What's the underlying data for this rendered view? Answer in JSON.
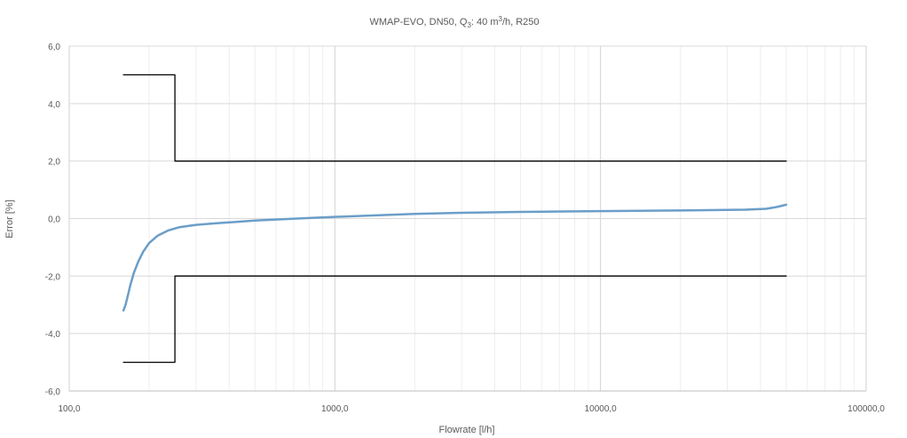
{
  "chart_data": {
    "type": "line",
    "title": "WMAP-EVO, DN50, Q3: 40 m³/h, R250",
    "title_parts": {
      "prefix": "WMAP-EVO, DN50, Q",
      "sub": "3",
      "mid": ": 40 m",
      "sup": "3",
      "suffix": "/h, R250"
    },
    "xlabel": "Flowrate [l/h]",
    "ylabel": "Error [%]",
    "x_scale": "log",
    "xlim": [
      100,
      100000
    ],
    "ylim": [
      -6,
      6
    ],
    "x_ticks": [
      {
        "value": 100,
        "label": "100,0"
      },
      {
        "value": 1000,
        "label": "1000,0"
      },
      {
        "value": 10000,
        "label": "10000,0"
      },
      {
        "value": 100000,
        "label": "100000,0"
      }
    ],
    "y_ticks": [
      {
        "value": 6,
        "label": "6,0"
      },
      {
        "value": 4,
        "label": "4,0"
      },
      {
        "value": 2,
        "label": "2,0"
      },
      {
        "value": 0,
        "label": "0,0"
      },
      {
        "value": -2,
        "label": "-2,0"
      },
      {
        "value": -4,
        "label": "-4,0"
      },
      {
        "value": -6,
        "label": "-6,0"
      }
    ],
    "grid": true,
    "legend": "none",
    "series": [
      {
        "color": "#6b9ec8",
        "points": [
          [
            160,
            -3.2
          ],
          [
            163,
            -3.0
          ],
          [
            166,
            -2.7
          ],
          [
            170,
            -2.3
          ],
          [
            175,
            -1.9
          ],
          [
            182,
            -1.5
          ],
          [
            190,
            -1.15
          ],
          [
            200,
            -0.85
          ],
          [
            215,
            -0.6
          ],
          [
            235,
            -0.42
          ],
          [
            260,
            -0.3
          ],
          [
            300,
            -0.22
          ],
          [
            350,
            -0.17
          ],
          [
            420,
            -0.12
          ],
          [
            500,
            -0.07
          ],
          [
            650,
            -0.02
          ],
          [
            800,
            0.02
          ],
          [
            1000,
            0.06
          ],
          [
            1500,
            0.12
          ],
          [
            2000,
            0.16
          ],
          [
            3000,
            0.2
          ],
          [
            5000,
            0.23
          ],
          [
            8000,
            0.25
          ],
          [
            10000,
            0.26
          ],
          [
            20000,
            0.28
          ],
          [
            35000,
            0.31
          ],
          [
            42000,
            0.34
          ],
          [
            46000,
            0.4
          ],
          [
            50000,
            0.48
          ]
        ]
      },
      {
        "color": "#000000",
        "points": [
          [
            160,
            5
          ],
          [
            250,
            5
          ],
          [
            250,
            2
          ],
          [
            50000,
            2
          ]
        ]
      },
      {
        "color": "#000000",
        "points": [
          [
            160,
            -5
          ],
          [
            250,
            -5
          ],
          [
            250,
            -2
          ],
          [
            50000,
            -2
          ]
        ]
      }
    ]
  }
}
